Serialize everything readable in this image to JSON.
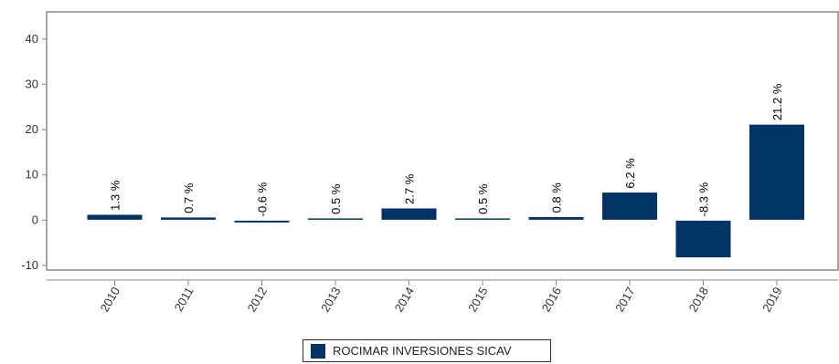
{
  "chart_data": {
    "type": "bar",
    "categories": [
      "2010",
      "2011",
      "2012",
      "2013",
      "2014",
      "2015",
      "2016",
      "2017",
      "2018",
      "2019"
    ],
    "series": [
      {
        "name": "ROCIMAR INVERSIONES SICAV",
        "values": [
          1.3,
          0.7,
          -0.6,
          0.5,
          2.7,
          0.5,
          0.8,
          6.2,
          -8.3,
          21.2
        ],
        "labels": [
          "1.3 %",
          "0.7 %",
          "-0.6 %",
          "0.5 %",
          "2.7 %",
          "0.5 %",
          "0.8 %",
          "6.2 %",
          "-8.3 %",
          "21.2 %"
        ],
        "color": "#003366"
      }
    ],
    "y_ticks": [
      "-10",
      "0",
      "10",
      "20",
      "30",
      "40"
    ],
    "ylim": [
      -11,
      46
    ],
    "grid": false,
    "legend_position": "bottom-center"
  }
}
